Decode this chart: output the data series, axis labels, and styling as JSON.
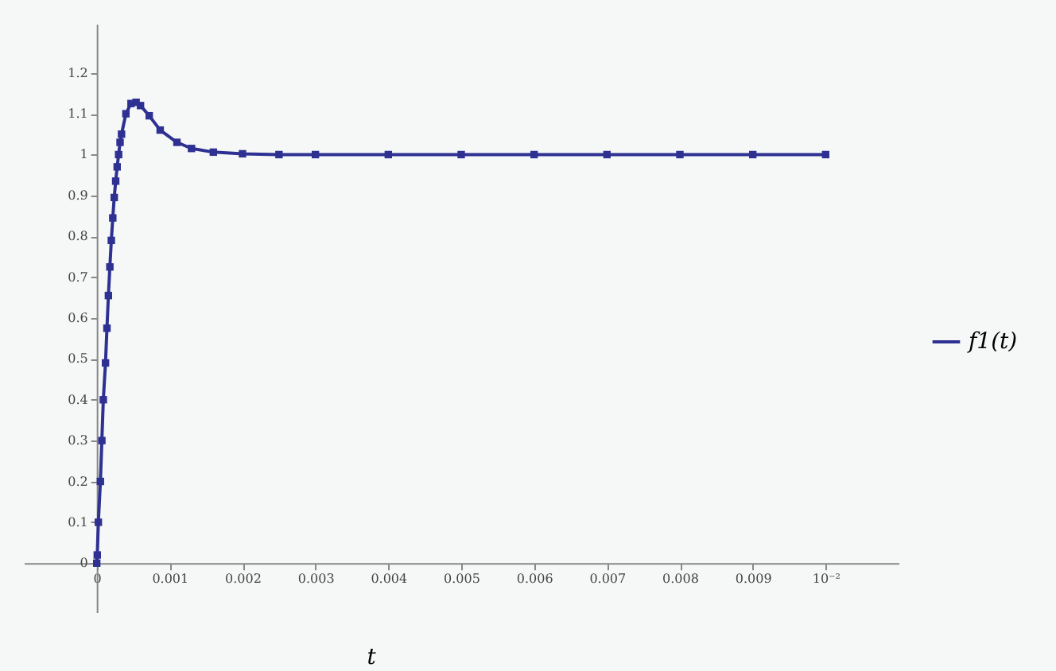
{
  "chart_data": {
    "type": "line",
    "xlabel": "t",
    "legend": "right",
    "marker": "square",
    "line_style": "solid",
    "grid": false,
    "x": [
      0,
      7e-06,
      2.2e-05,
      5e-05,
      7e-05,
      9e-05,
      0.00012,
      0.00014,
      0.00016,
      0.00018,
      0.0002,
      0.00022,
      0.00024,
      0.00026,
      0.00028,
      0.0003,
      0.00032,
      0.00034,
      0.0004,
      0.00047,
      0.00054,
      0.0006,
      0.00072,
      0.00087,
      0.0011,
      0.0013,
      0.0016,
      0.002,
      0.0025,
      0.003,
      0.004,
      0.005,
      0.006,
      0.007,
      0.008,
      0.009,
      0.01
    ],
    "series": [
      {
        "name": "f1(t)",
        "color": "#2e3192",
        "values": [
          0,
          0.02,
          0.1,
          0.2,
          0.3,
          0.4,
          0.49,
          0.575,
          0.655,
          0.725,
          0.79,
          0.845,
          0.895,
          0.935,
          0.97,
          1.0,
          1.03,
          1.05,
          1.1,
          1.125,
          1.128,
          1.12,
          1.095,
          1.06,
          1.03,
          1.015,
          1.006,
          1.002,
          1.0,
          1.0,
          1.0,
          1.0,
          1.0,
          1.0,
          1.0,
          1.0,
          1.0
        ]
      }
    ],
    "xlim": [
      -0.001,
      0.011
    ],
    "ylim": [
      -0.12,
      1.32
    ],
    "xticks": [
      0,
      0.001,
      0.002,
      0.003,
      0.004,
      0.005,
      0.006,
      0.007,
      0.008,
      0.009,
      {
        "value": 0.01,
        "label": "10⁻²"
      }
    ],
    "yticks": [
      0,
      0.1,
      0.2,
      0.3,
      0.4,
      0.5,
      0.6,
      0.7,
      0.8,
      0.9,
      1,
      1.1,
      1.2
    ]
  }
}
